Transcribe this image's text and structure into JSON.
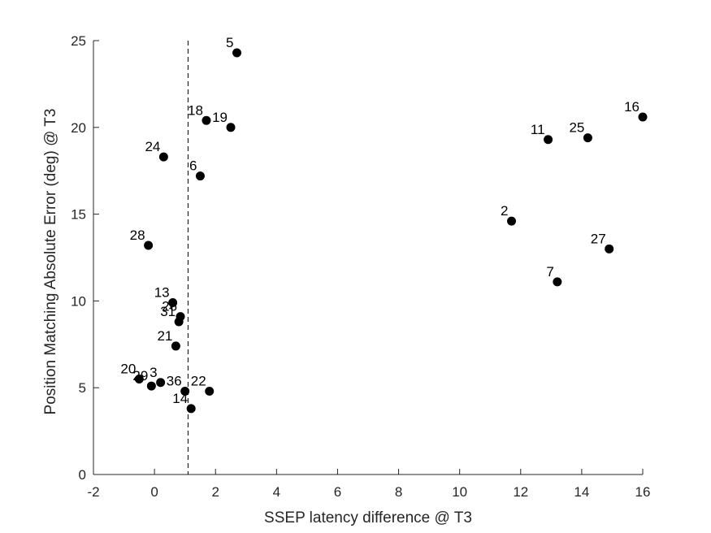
{
  "chart_data": {
    "type": "scatter",
    "title": "",
    "xlabel": "SSEP latency difference @ T3",
    "ylabel": "Position Matching Absolute Error (deg) @ T3",
    "xlim": [
      -2,
      16
    ],
    "ylim": [
      0,
      25
    ],
    "xticks": [
      "-2",
      "0",
      "2",
      "4",
      "6",
      "8",
      "10",
      "12",
      "14",
      "16"
    ],
    "yticks": [
      "0",
      "5",
      "10",
      "15",
      "20",
      "25"
    ],
    "grid": false,
    "reference_line": {
      "axis": "x",
      "value": 1.1,
      "style": "dashed"
    },
    "point_color": "#000000",
    "points": [
      {
        "label": "5",
        "x": 2.7,
        "y": 24.3
      },
      {
        "label": "18",
        "x": 1.7,
        "y": 20.4
      },
      {
        "label": "19",
        "x": 2.5,
        "y": 20.0
      },
      {
        "label": "24",
        "x": 0.3,
        "y": 18.3
      },
      {
        "label": "6",
        "x": 1.5,
        "y": 17.2
      },
      {
        "label": "28",
        "x": -0.2,
        "y": 13.2
      },
      {
        "label": "13",
        "x": 0.6,
        "y": 9.9
      },
      {
        "label": "26",
        "x": 0.85,
        "y": 9.1
      },
      {
        "label": "31",
        "x": 0.8,
        "y": 8.8
      },
      {
        "label": "21",
        "x": 0.7,
        "y": 7.4
      },
      {
        "label": "20",
        "x": -0.5,
        "y": 5.5
      },
      {
        "label": "29",
        "x": -0.1,
        "y": 5.1
      },
      {
        "label": "3",
        "x": 0.2,
        "y": 5.3
      },
      {
        "label": "36",
        "x": 1.0,
        "y": 4.8
      },
      {
        "label": "22",
        "x": 1.8,
        "y": 4.8
      },
      {
        "label": "14",
        "x": 1.2,
        "y": 3.8
      },
      {
        "label": "2",
        "x": 11.7,
        "y": 14.6
      },
      {
        "label": "11",
        "x": 12.9,
        "y": 19.3
      },
      {
        "label": "25",
        "x": 14.2,
        "y": 19.4
      },
      {
        "label": "16",
        "x": 16.0,
        "y": 20.6
      },
      {
        "label": "27",
        "x": 14.9,
        "y": 13.0
      },
      {
        "label": "7",
        "x": 13.2,
        "y": 11.1
      }
    ]
  }
}
